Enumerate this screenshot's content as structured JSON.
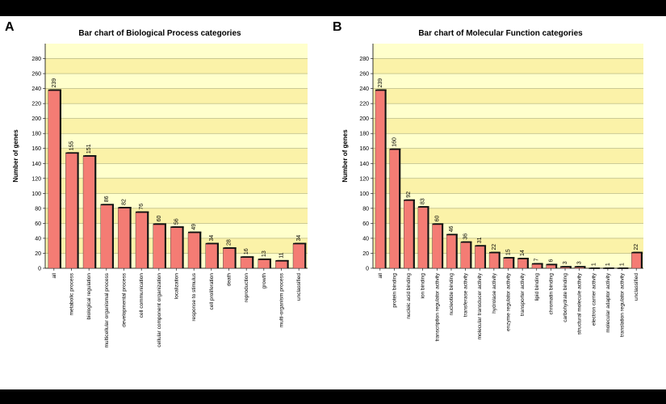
{
  "colors": {
    "plot_background": "#ffffcc",
    "plot_band": "#fbf2a8",
    "bar_fill": "#f47c74",
    "bar_shadow": "#111111",
    "gridline": "#999966"
  },
  "chart_data": [
    {
      "panel_label": "A",
      "type": "bar",
      "title": "Bar chart of Biological Process categories",
      "xlabel": "",
      "ylabel": "Number of genes",
      "ylim": [
        0,
        300
      ],
      "yticks": [
        0,
        20,
        40,
        60,
        80,
        100,
        120,
        140,
        160,
        180,
        200,
        220,
        240,
        260,
        280
      ],
      "grid": true,
      "legend": "none",
      "categories": [
        "all",
        "metabolic process",
        "biological regulation",
        "multicellular organismal process",
        "developmental process",
        "cell communication",
        "cellular component organization",
        "localization",
        "response to stimulus",
        "cell proliferation",
        "death",
        "reproduction",
        "growth",
        "multi-organism process",
        "unclassified"
      ],
      "values": [
        239,
        155,
        151,
        86,
        82,
        76,
        60,
        56,
        49,
        34,
        28,
        16,
        13,
        11,
        34
      ]
    },
    {
      "panel_label": "B",
      "type": "bar",
      "title": "Bar chart of Molecular Function categories",
      "xlabel": "",
      "ylabel": "Number of genes",
      "ylim": [
        0,
        300
      ],
      "yticks": [
        0,
        20,
        40,
        60,
        80,
        100,
        120,
        140,
        160,
        180,
        200,
        220,
        240,
        260,
        280
      ],
      "grid": true,
      "legend": "none",
      "categories": [
        "all",
        "protein binding",
        "nucleic acid binding",
        "ion binding",
        "transcription regulator activity",
        "nucleotide binding",
        "transferase activity",
        "molecular transducer activity",
        "hydrolase activity",
        "enzyme regulator activity",
        "transporter activity",
        "lipid binding",
        "chromatin binding",
        "carbohydrate binding",
        "structural molecule activity",
        "electron carrier activity",
        "molecular adaptor activity",
        "translation regulator activity",
        "unclassified"
      ],
      "values": [
        239,
        160,
        92,
        83,
        60,
        46,
        36,
        31,
        22,
        15,
        14,
        7,
        6,
        3,
        3,
        1,
        1,
        1,
        22
      ]
    }
  ]
}
